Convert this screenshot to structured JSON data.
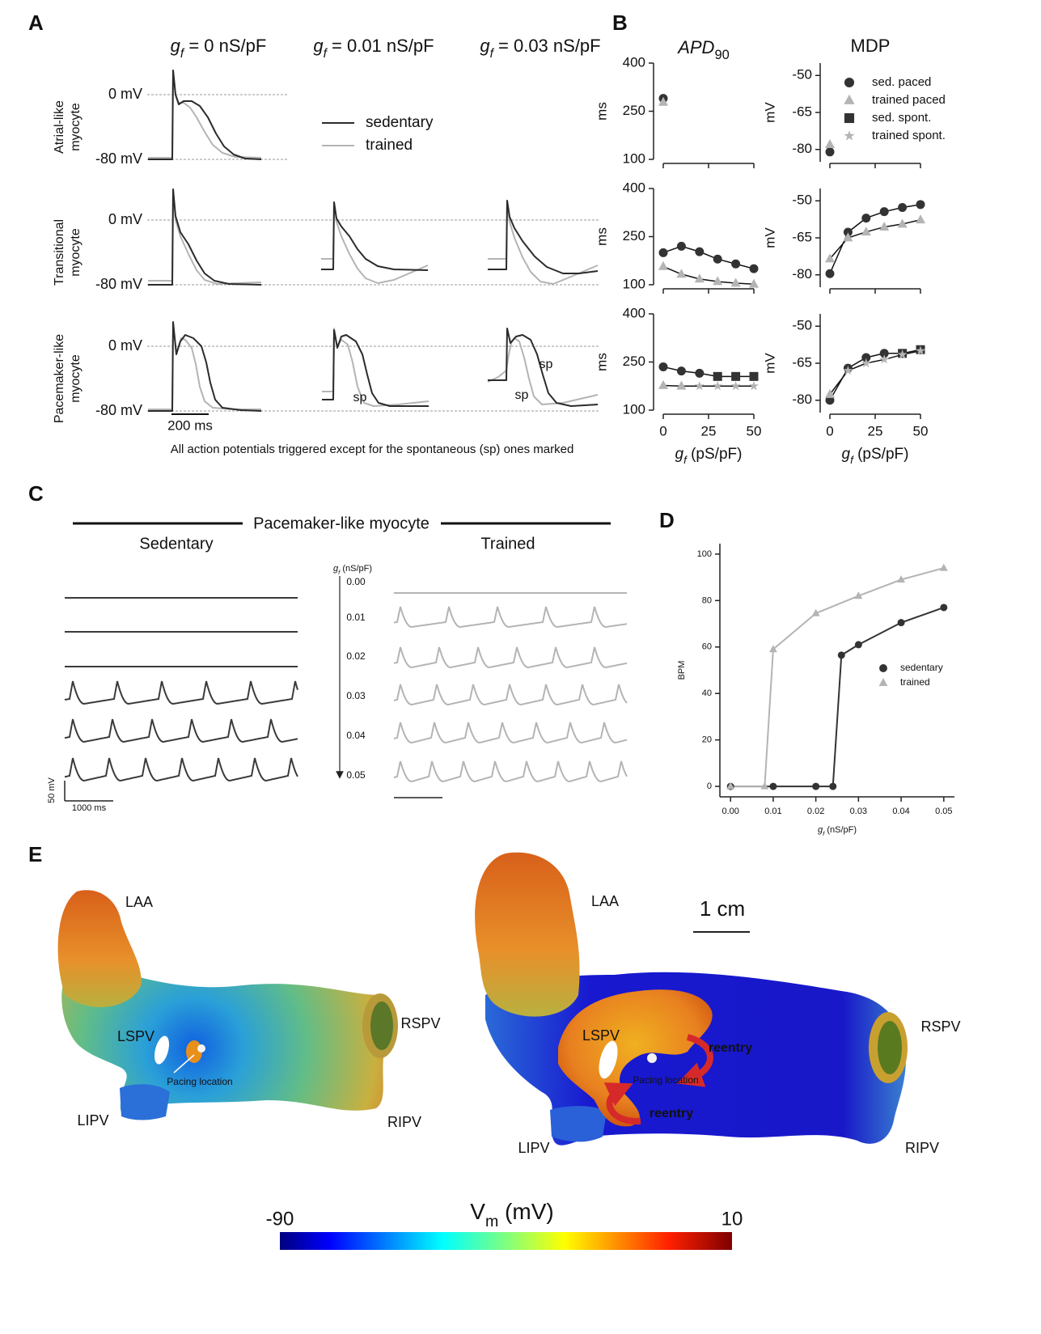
{
  "panel_labels": [
    "A",
    "B",
    "C",
    "D",
    "E"
  ],
  "symbol": {
    "g": "g",
    "f": "f"
  },
  "panel_a": {
    "column_titles": [
      " = 0 nS/pF",
      " = 0.01 nS/pF",
      " = 0.03 nS/pF"
    ],
    "row_labels": [
      [
        "Atrial-like",
        "myocyte"
      ],
      [
        "Transitional",
        "myocyte"
      ],
      [
        "Pacemaker-like",
        "myocyte"
      ]
    ],
    "y_labels": [
      "0 mV",
      "-80 mV"
    ],
    "legend": [
      {
        "name": "sedentary",
        "color": "#2b2b2b"
      },
      {
        "name": "trained",
        "color": "#b4b4b4"
      }
    ],
    "scale_bar": "200 ms",
    "spont_label": "sp",
    "caption": "All action potentials triggered except for the spontaneous (sp) ones marked"
  },
  "chart_data": [
    {
      "type": "line",
      "title": {
        "text": "APD",
        "sub": "90"
      },
      "ylabel": "ms",
      "x": [
        0,
        10,
        20,
        30,
        40,
        50
      ],
      "xlim": [
        0,
        50
      ],
      "xticks": [
        0,
        25,
        50
      ],
      "ylim": [
        100,
        400
      ],
      "yticks": [
        100,
        250,
        400
      ],
      "series": [
        {
          "color": "#333333",
          "marker": "circle",
          "values": [
            290,
            null,
            null,
            null,
            null,
            null
          ]
        },
        {
          "color": "#b4b4b4",
          "marker": "triangle",
          "values": [
            278,
            null,
            null,
            null,
            null,
            null
          ]
        }
      ]
    },
    {
      "type": "line",
      "ylabel": "ms",
      "x": [
        0,
        10,
        20,
        30,
        40,
        50
      ],
      "xlim": [
        0,
        50
      ],
      "xticks": [
        0,
        25,
        50
      ],
      "ylim": [
        100,
        400
      ],
      "yticks": [
        100,
        250,
        400
      ],
      "series": [
        {
          "color": "#333333",
          "marker": "circle",
          "values": [
            200,
            220,
            203,
            180,
            165,
            150
          ]
        },
        {
          "color": "#b4b4b4",
          "marker": "triangle",
          "values": [
            157,
            133,
            118,
            110,
            105,
            102
          ]
        }
      ]
    },
    {
      "type": "line",
      "ylabel": "ms",
      "xlabel": " (pS/pF)",
      "x": [
        0,
        10,
        20,
        30,
        40,
        50
      ],
      "xlim": [
        0,
        50
      ],
      "xticks": [
        0,
        25,
        50
      ],
      "ylim": [
        100,
        400
      ],
      "yticks": [
        100,
        250,
        400
      ],
      "series": [
        {
          "color": "#333333",
          "marker": "circle",
          "values": [
            235,
            222,
            215,
            null,
            null,
            null
          ]
        },
        {
          "color": "#b4b4b4",
          "marker": "triangle",
          "values": [
            177,
            175,
            null,
            null,
            null,
            null
          ]
        },
        {
          "color": "#333333",
          "marker": "square",
          "values": [
            null,
            null,
            null,
            205,
            205,
            205
          ]
        },
        {
          "color": "#b4b4b4",
          "marker": "star",
          "values": [
            null,
            null,
            175,
            175,
            175,
            175
          ]
        }
      ]
    },
    {
      "type": "line",
      "title": "MDP",
      "ylabel": "mV",
      "x": [
        0,
        10,
        20,
        30,
        40,
        50
      ],
      "xlim": [
        0,
        50
      ],
      "xticks": [
        0,
        25,
        50
      ],
      "ylim": [
        -85,
        -45
      ],
      "yticks": [
        -80,
        -65,
        -50
      ],
      "series": [
        {
          "name": "sed. paced",
          "color": "#333333",
          "marker": "circle",
          "values": [
            -81,
            null,
            null,
            null,
            null,
            null
          ]
        },
        {
          "name": "trained paced",
          "color": "#b4b4b4",
          "marker": "triangle",
          "values": [
            -78,
            null,
            null,
            null,
            null,
            null
          ]
        },
        {
          "name": "sed. spont.",
          "color": "#333333",
          "marker": "square",
          "values": [
            null,
            null,
            null,
            null,
            null,
            null
          ]
        },
        {
          "name": "trained spont.",
          "color": "#b4b4b4",
          "marker": "star",
          "values": [
            null,
            null,
            null,
            null,
            null,
            null
          ]
        }
      ]
    },
    {
      "type": "line",
      "ylabel": "mV",
      "x": [
        0,
        10,
        20,
        30,
        40,
        50
      ],
      "xlim": [
        0,
        50
      ],
      "xticks": [
        0,
        25,
        50
      ],
      "ylim": [
        -85,
        -45
      ],
      "yticks": [
        -80,
        -65,
        -50
      ],
      "series": [
        {
          "color": "#333333",
          "marker": "circle",
          "values": [
            -79.5,
            -62.7,
            -57,
            -54.4,
            -52.7,
            -51.5
          ]
        },
        {
          "color": "#b4b4b4",
          "marker": "triangle",
          "values": [
            -73.5,
            -65,
            -62.6,
            -60.6,
            -59.4,
            -57.7
          ]
        }
      ]
    },
    {
      "type": "line",
      "ylabel": "mV",
      "xlabel": " (pS/pF)",
      "x": [
        0,
        10,
        20,
        30,
        40,
        50
      ],
      "xlim": [
        0,
        50
      ],
      "xticks": [
        0,
        25,
        50
      ],
      "ylim": [
        -85,
        -45
      ],
      "yticks": [
        -80,
        -65,
        -50
      ],
      "series": [
        {
          "color": "#333333",
          "marker": "circle",
          "values": [
            -80,
            -67,
            -62.7,
            -61,
            null,
            null
          ]
        },
        {
          "color": "#b4b4b4",
          "marker": "triangle",
          "values": [
            -77.6,
            null,
            null,
            null,
            null,
            null
          ]
        },
        {
          "color": "#333333",
          "marker": "square",
          "values": [
            null,
            null,
            null,
            null,
            -61,
            -59.5
          ]
        },
        {
          "color": "#b4b4b4",
          "marker": "star",
          "values": [
            null,
            -68,
            -65,
            -63.5,
            -61.5,
            -60
          ]
        }
      ]
    },
    {
      "type": "line",
      "ylabel": "BPM",
      "xlabel": " (nS/pF)",
      "xlim": [
        -0.0025,
        0.0525
      ],
      "xticks": [
        {
          "value": 0,
          "label": "0.00"
        },
        {
          "value": 0.01,
          "label": "0.01"
        },
        {
          "value": 0.02,
          "label": "0.02"
        },
        {
          "value": 0.03,
          "label": "0.03"
        },
        {
          "value": 0.04,
          "label": "0.04"
        },
        {
          "value": 0.05,
          "label": "0.05"
        }
      ],
      "ylim": [
        -4.5,
        104.5
      ],
      "yticks": [
        0,
        20,
        40,
        60,
        80,
        100
      ],
      "series": [
        {
          "name": "sedentary",
          "color": "#333333",
          "marker": "circle",
          "x": [
            0,
            0.01,
            0.02,
            0.024,
            0.026,
            0.03,
            0.04,
            0.05
          ],
          "values": [
            0,
            0,
            0,
            0,
            56.5,
            61,
            70.5,
            77
          ]
        },
        {
          "name": "trained",
          "color": "#b4b4b4",
          "marker": "triangle",
          "x": [
            0,
            0.008,
            0.01,
            0.02,
            0.03,
            0.04,
            0.05
          ],
          "values": [
            0,
            0,
            59,
            74.5,
            82,
            89,
            94
          ]
        }
      ]
    }
  ],
  "panel_c": {
    "title": "Pacemaker-like myocyte",
    "groups": [
      "Sedentary",
      "Trained"
    ],
    "gf_unit": " (nS/pF)",
    "gf_levels": [
      "0.00",
      "0.01",
      "0.02",
      "0.03",
      "0.04",
      "0.05"
    ],
    "scale_y": "50 mV",
    "scale_x": "1000 ms",
    "colors": [
      "#3a3a3a",
      "#b4b4b4"
    ]
  },
  "panel_e": {
    "left": {
      "labels": [
        "LAA",
        "LSPV",
        "RSPV",
        "LIPV",
        "RIPV"
      ],
      "pacing": "Pacing location"
    },
    "right": {
      "labels": [
        "LAA",
        "LSPV",
        "RSPV",
        "LIPV",
        "RIPV"
      ],
      "pacing": "Pacing location",
      "reentry": [
        "reentry",
        "reentry"
      ],
      "scale": "1 cm"
    },
    "colorbar": {
      "symbol": "V",
      "sub": "m",
      "unit": " (mV)",
      "lim": [
        -90,
        10
      ]
    }
  }
}
